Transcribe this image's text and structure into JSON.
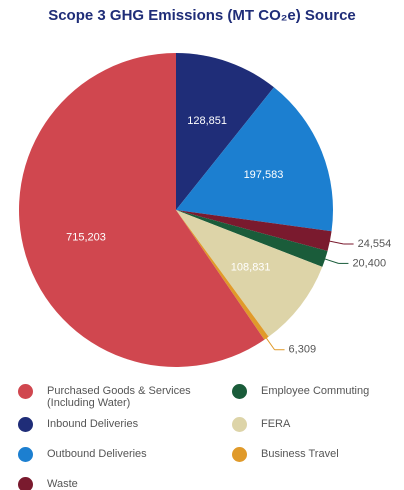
{
  "chart_data": {
    "type": "pie",
    "title": "Scope 3 GHG Emissions (MT CO₂e) Source",
    "categories": [
      "Inbound Deliveries",
      "Outbound Deliveries",
      "Waste",
      "Employee Commuting",
      "FERA",
      "Business Travel",
      "Purchased Goods & Services (Including Water)"
    ],
    "values": [
      128851,
      197583,
      24554,
      20400,
      108831,
      6309,
      715203
    ],
    "value_labels": [
      "128,851",
      "197,583",
      "24,554",
      "20,400",
      "108,831",
      "6,309",
      "715,203"
    ],
    "colors": [
      "#1f2d78",
      "#1c7fd0",
      "#7a1a2e",
      "#1a5c3a",
      "#ddd4a8",
      "#e09a2a",
      "#d0474f"
    ]
  }
}
